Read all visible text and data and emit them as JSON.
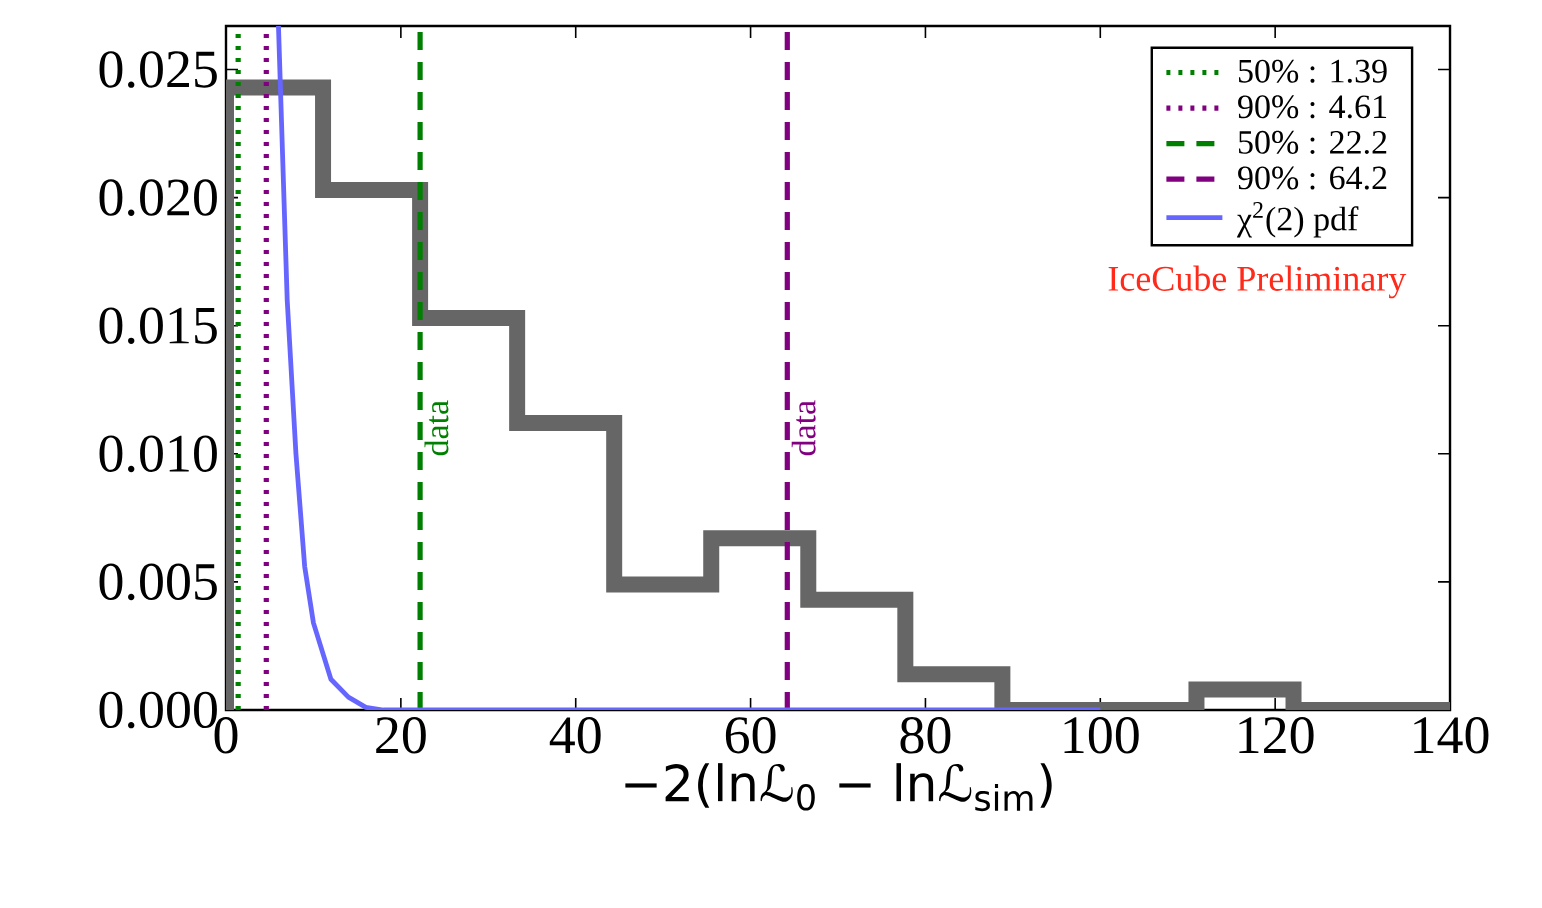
{
  "chart_data": {
    "type": "histogram",
    "bins": [
      0,
      11.1,
      22.2,
      33.3,
      44.4,
      55.5,
      66.6,
      77.7,
      88.8,
      99.9,
      111,
      122.1,
      140
    ],
    "values": [
      0.0243,
      0.0203,
      0.0153,
      0.0112,
      0.0049,
      0.0067,
      0.0043,
      0.0014,
      0,
      0,
      0.0008,
      0
    ],
    "color": "#666666",
    "series": [
      {
        "type": "line",
        "name": "50% : 1.39",
        "color": "#008000",
        "line_style": "dotted",
        "x": [
          1.39,
          1.39
        ],
        "values": [
          0,
          0.0267
        ]
      },
      {
        "type": "line",
        "name": "90% : 4.61",
        "color": "#800080",
        "line_style": "dotted",
        "x": [
          4.61,
          4.61
        ],
        "values": [
          0,
          0.0267
        ]
      },
      {
        "type": "line",
        "name": "50% : 22.2",
        "color": "#008000",
        "line_style": "dashed",
        "x": [
          22.2,
          22.2
        ],
        "values": [
          0,
          0.0267
        ]
      },
      {
        "type": "line",
        "name": "90% : 64.2",
        "color": "#800080",
        "line_style": "dashed",
        "x": [
          64.2,
          64.2
        ],
        "values": [
          0,
          0.0267
        ]
      },
      {
        "type": "line",
        "name": "χ$^{2}$(2) pdf",
        "color": "#6666ff",
        "line_style": "solid",
        "x": [
          6,
          7,
          8,
          9,
          10,
          12,
          14,
          16,
          18,
          100
        ],
        "values": [
          0.0267,
          0.016,
          0.01,
          0.0056,
          0.0034,
          0.0012,
          0.0005,
          0.0001,
          0,
          0
        ]
      }
    ],
    "annotations": [
      {
        "text": "data",
        "x": 22.2,
        "y": 0.011
      },
      {
        "text": "data",
        "x": 64.2,
        "y": 0.011
      },
      "IceCube Preliminary"
    ],
    "xlabel": "−2(lnℒ$_{0}$ − lnℒ$_{sim}$)",
    "xlim": [
      0,
      140
    ],
    "ylim": [
      0,
      0.0267
    ],
    "xticks": [
      0,
      20,
      40,
      60,
      80,
      100,
      120,
      140
    ],
    "yticks": [
      {
        "value": 0,
        "label": "0.000"
      },
      {
        "value": 0.005,
        "label": "0.005"
      },
      {
        "value": 0.01,
        "label": "0.010"
      },
      {
        "value": 0.015,
        "label": "0.015"
      },
      {
        "value": 0.02,
        "label": "0.020"
      },
      {
        "value": 0.025,
        "label": "0.025"
      }
    ],
    "legend": "top right",
    "grid": false,
    "marker": "none"
  }
}
